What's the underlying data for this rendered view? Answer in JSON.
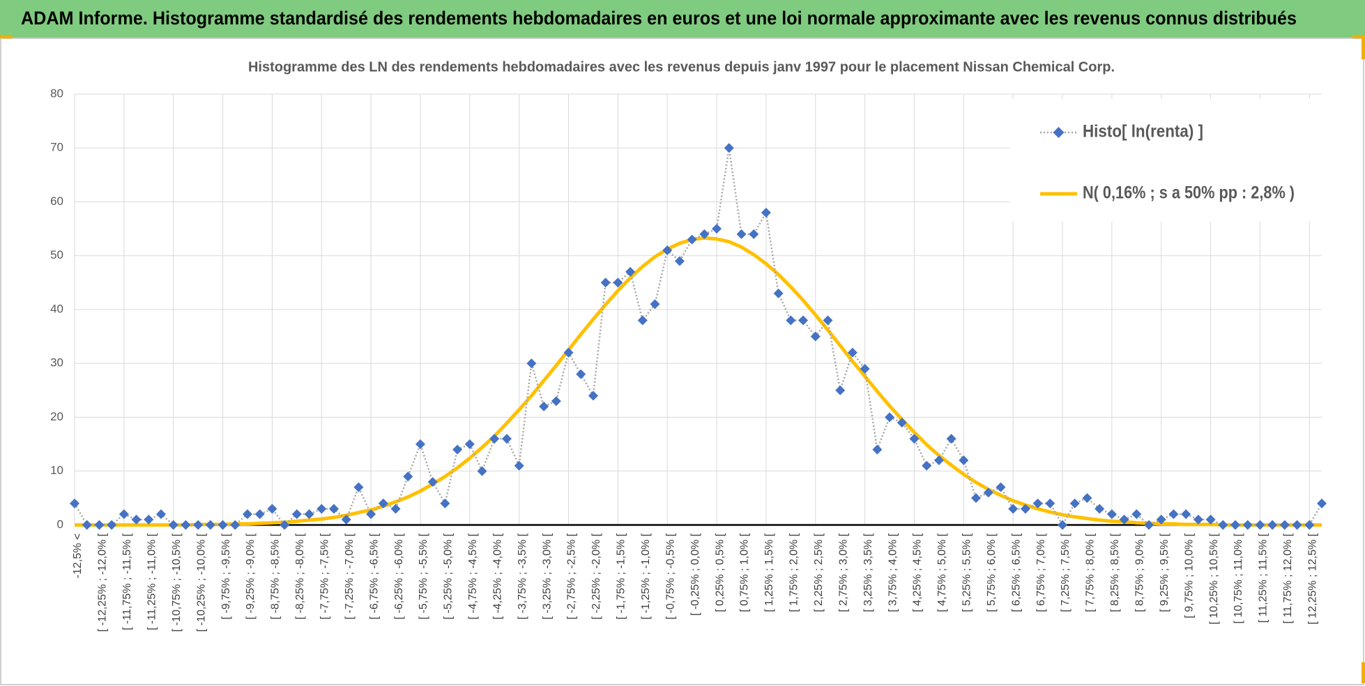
{
  "header": {
    "title": "ADAM Informe. Histogramme standardisé des rendements hebdomadaires en euros et une loi normale approximante avec les revenus connus distribués"
  },
  "chart_data": {
    "type": "line",
    "title": "Histogramme des LN des rendements hebdomadaires avec les revenus depuis janv 1997 pour le placement Nissan Chemical Corp.",
    "categories": [
      "-12,5% <",
      null,
      "[ -12,25% ; -12,0% [",
      null,
      "[ -11,75% ; -11,5% [",
      null,
      "[ -11,25% ; -11,0% [",
      null,
      "[ -10,75% ; -10,5% [",
      null,
      "[ -10,25% ; -10,0% [",
      null,
      "[ -9,75% ; -9,5% [",
      null,
      "[ -9,25% ; -9,0% [",
      null,
      "[ -8,75% ; -8,5% [",
      null,
      "[ -8,25% ; -8,0% [",
      null,
      "[ -7,75% ; -7,5% [",
      null,
      "[ -7,25% ; -7,0% [",
      null,
      "[ -6,75% ; -6,5% [",
      null,
      "[ -6,25% ; -6,0% [",
      null,
      "[ -5,75% ; -5,5% [",
      null,
      "[ -5,25% ; -5,0% [",
      null,
      "[ -4,75% ; -4,5% [",
      null,
      "[ -4,25% ; -4,0% [",
      null,
      "[ -3,75% ; -3,5% [",
      null,
      "[ -3,25% ; -3,0% [",
      null,
      "[ -2,75% ; -2,5% [",
      null,
      "[ -2,25% ; -2,0% [",
      null,
      "[ -1,75% ; -1,5% [",
      null,
      "[ -1,25% ; -1,0% [",
      null,
      "[ -0,75% ; -0,5% [",
      null,
      "[ -0,25% ; 0,0% [",
      null,
      "[ 0,25% ; 0,5% [",
      null,
      "[ 0,75% ; 1,0% [",
      null,
      "[ 1,25% ; 1,5% [",
      null,
      "[ 1,75% ; 2,0% [",
      null,
      "[ 2,25% ; 2,5% [",
      null,
      "[ 2,75% ; 3,0% [",
      null,
      "[ 3,25% ; 3,5% [",
      null,
      "[ 3,75% ; 4,0% [",
      null,
      "[ 4,25% ; 4,5% [",
      null,
      "[ 4,75% ; 5,0% [",
      null,
      "[ 5,25% ; 5,5% [",
      null,
      "[ 5,75% ; 6,0% [",
      null,
      "[ 6,25% ; 6,5% [",
      null,
      "[ 6,75% ; 7,0% [",
      null,
      "[ 7,25% ; 7,5% [",
      null,
      "[ 7,75% ; 8,0% [",
      null,
      "[ 8,25% ; 8,5% [",
      null,
      "[ 8,75% ; 9,0% [",
      null,
      "[ 9,25% ; 9,5% [",
      null,
      "[ 9,75% ; 10,0% [",
      null,
      "[ 10,25% ; 10,5% [",
      null,
      "[ 10,75% ; 11,0% [",
      null,
      "[ 11,25% ; 11,5% [",
      null,
      "[ 11,75% ; 12,0% [",
      null,
      "[ 12,25% ; 12,5% [",
      null
    ],
    "series": [
      {
        "name": "Histo[ ln(renta) ]",
        "color": "#4472c4",
        "line_color": "#a5a5a5",
        "values": [
          4,
          0,
          0,
          0,
          2,
          1,
          1,
          2,
          0,
          0,
          0,
          0,
          0,
          0,
          2,
          2,
          3,
          0,
          2,
          2,
          3,
          3,
          1,
          7,
          2,
          4,
          3,
          9,
          15,
          8,
          4,
          14,
          15,
          10,
          16,
          16,
          11,
          30,
          22,
          23,
          32,
          28,
          24,
          45,
          45,
          47,
          38,
          41,
          51,
          49,
          53,
          54,
          55,
          70,
          54,
          54,
          58,
          43,
          38,
          38,
          35,
          38,
          25,
          32,
          29,
          14,
          20,
          19,
          16,
          11,
          12,
          16,
          12,
          5,
          6,
          7,
          3,
          3,
          4,
          4,
          0,
          4,
          5,
          3,
          2,
          1,
          2,
          0,
          1,
          2,
          2,
          1,
          1,
          0,
          0,
          0,
          0,
          0,
          0,
          0,
          0,
          4
        ]
      },
      {
        "name": "N( 0,16% ; s a 50% pp : 2,8% )",
        "color": "#ffc000",
        "values": [
          0,
          0,
          0,
          0,
          0,
          0,
          0,
          0,
          0,
          0,
          0.1,
          0.1,
          0.1,
          0.2,
          0.2,
          0.3,
          0.4,
          0.5,
          0.7,
          0.9,
          1.1,
          1.4,
          1.8,
          2.3,
          2.8,
          3.5,
          4.3,
          5.2,
          6.3,
          7.6,
          9.0,
          10.6,
          12.4,
          14.4,
          16.5,
          18.9,
          21.4,
          24.0,
          26.8,
          29.6,
          32.5,
          35.4,
          38.2,
          40.9,
          43.5,
          45.9,
          48.0,
          49.8,
          51.2,
          52.3,
          53.0,
          53.3,
          53.1,
          52.6,
          51.6,
          50.2,
          48.5,
          46.5,
          44.2,
          41.7,
          39.0,
          36.2,
          33.3,
          30.4,
          27.6,
          24.8,
          22.1,
          19.6,
          17.2,
          14.9,
          12.9,
          11.1,
          9.4,
          7.9,
          6.6,
          5.5,
          4.5,
          3.7,
          3.0,
          2.4,
          1.9,
          1.5,
          1.2,
          0.9,
          0.7,
          0.6,
          0.4,
          0.3,
          0.2,
          0.2,
          0.1,
          0.1,
          0.1,
          0,
          0,
          0,
          0,
          0,
          0,
          0,
          0,
          0
        ]
      }
    ],
    "ylim": [
      0,
      80
    ],
    "yticks": [
      0,
      10,
      20,
      30,
      40,
      50,
      60,
      70,
      80
    ],
    "grid": true,
    "legend": "upper right"
  }
}
